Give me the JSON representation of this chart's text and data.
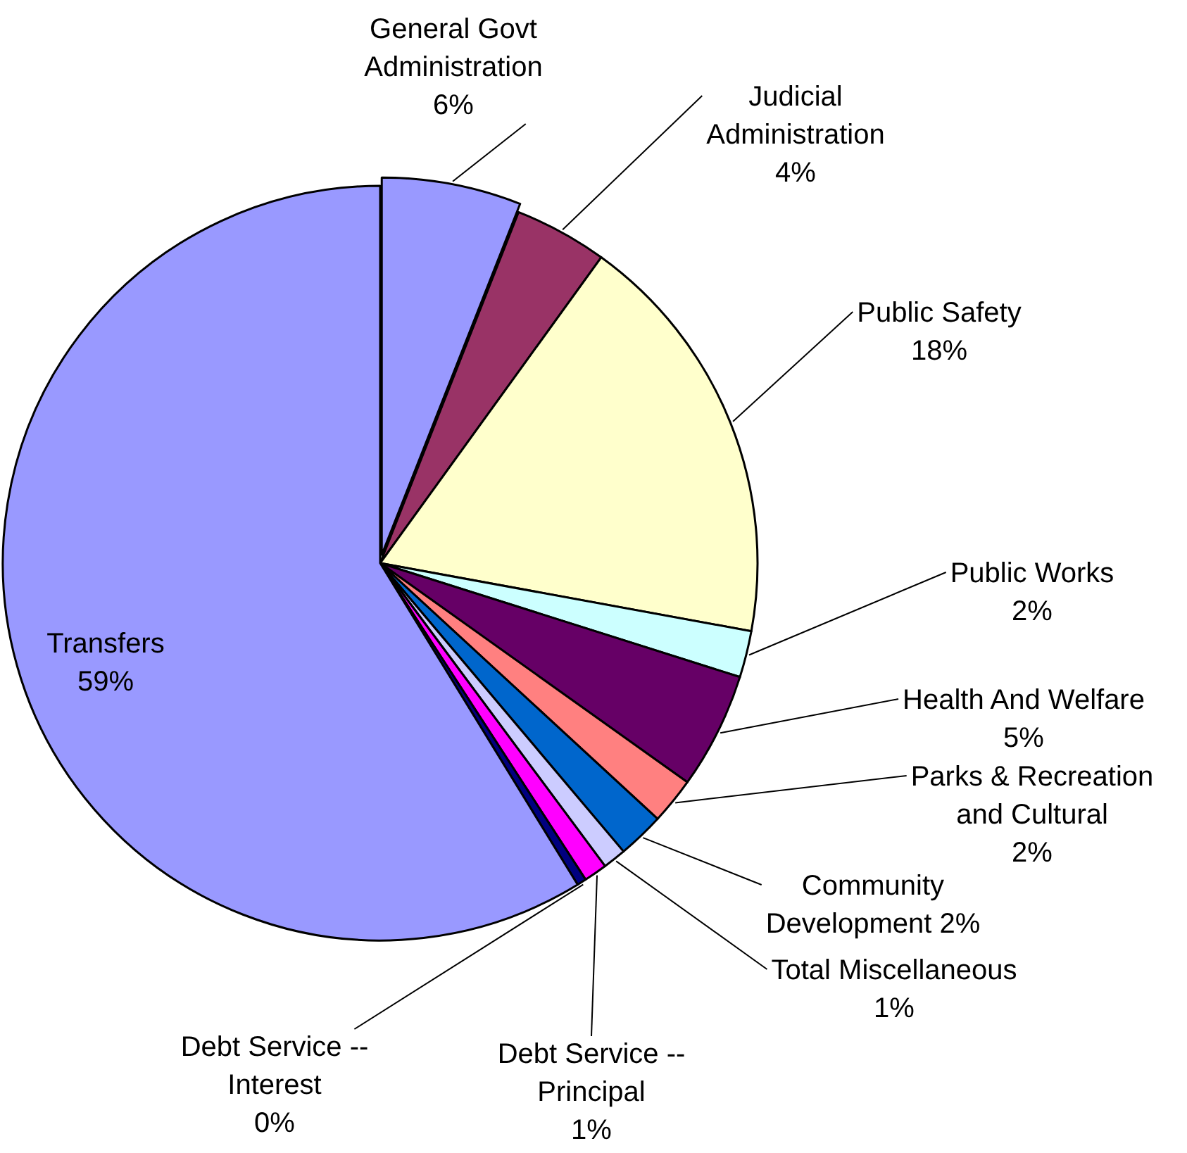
{
  "chart_data": {
    "type": "pie",
    "categories": [
      "General Govt Administration",
      "Judicial Administration",
      "Public Safety",
      "Public Works",
      "Health And Welfare",
      "Parks & Recreation and Cultural",
      "Community Development",
      "Total Miscellaneous",
      "Debt Service -- Principal",
      "Debt Service -- Interest",
      "Transfers"
    ],
    "values": [
      6,
      4,
      18,
      2,
      5,
      2,
      2,
      1,
      1,
      0.4,
      59
    ],
    "value_labels": [
      "6%",
      "4%",
      "18%",
      "2%",
      "5%",
      "2%",
      "2%",
      "1%",
      "1%",
      "0%",
      "59%"
    ],
    "colors": [
      "#9999ff",
      "#993366",
      "#ffffcc",
      "#ccffff",
      "#660066",
      "#ff8080",
      "#0066cc",
      "#ccccff",
      "#ff00ff",
      "#000080",
      "#9999ff"
    ]
  }
}
